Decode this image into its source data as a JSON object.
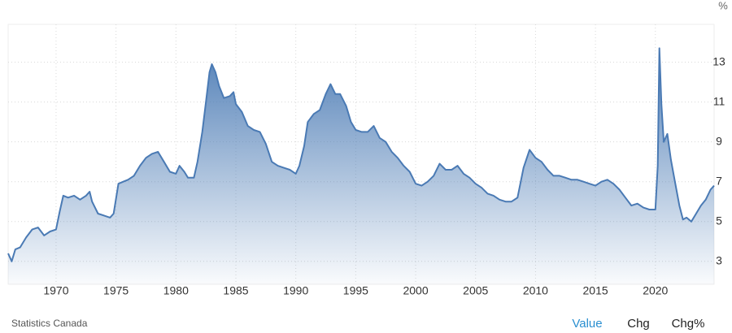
{
  "chart_data": {
    "type": "area",
    "y_unit": "%",
    "color": "#4a7ab4",
    "xlim": [
      1966,
      2024.9
    ],
    "xticks": [
      1970,
      1975,
      1980,
      1985,
      1990,
      1995,
      2000,
      2005,
      2010,
      2015,
      2020
    ],
    "ylim": [
      1.85,
      14.9
    ],
    "yticks": [
      3,
      5,
      7,
      9,
      11,
      13
    ],
    "grid": true,
    "x": [
      1966.0,
      1966.3,
      1966.6,
      1967,
      1967.5,
      1968,
      1968.5,
      1969,
      1969.5,
      1970,
      1970.3,
      1970.6,
      1971,
      1971.5,
      1972,
      1972.5,
      1972.8,
      1973,
      1973.5,
      1974,
      1974.5,
      1974.8,
      1975.2,
      1975.6,
      1976,
      1976.5,
      1977,
      1977.5,
      1978,
      1978.5,
      1979,
      1979.5,
      1980,
      1980.3,
      1980.7,
      1981,
      1981.5,
      1981.8,
      1982.2,
      1982.5,
      1982.8,
      1983,
      1983.3,
      1983.6,
      1984,
      1984.5,
      1984.8,
      1985,
      1985.5,
      1986,
      1986.5,
      1987,
      1987.5,
      1988,
      1988.5,
      1989,
      1989.5,
      1990,
      1990.3,
      1990.7,
      1991,
      1991.5,
      1992,
      1992.5,
      1992.9,
      1993.3,
      1993.7,
      1994.2,
      1994.6,
      1995,
      1995.5,
      1996,
      1996.5,
      1997,
      1997.5,
      1998,
      1998.5,
      1999,
      1999.5,
      2000,
      2000.5,
      2001,
      2001.5,
      2002,
      2002.5,
      2003,
      2003.5,
      2004,
      2004.5,
      2005,
      2005.5,
      2006,
      2006.5,
      2007,
      2007.5,
      2008,
      2008.5,
      2009,
      2009.5,
      2010,
      2010.5,
      2011,
      2011.5,
      2012,
      2012.5,
      2013,
      2013.5,
      2014,
      2014.5,
      2015,
      2015.5,
      2016,
      2016.5,
      2017,
      2017.5,
      2018,
      2018.5,
      2019,
      2019.5,
      2020,
      2020.2,
      2020.33,
      2020.5,
      2020.7,
      2021,
      2021.3,
      2021.6,
      2022,
      2022.3,
      2022.6,
      2023,
      2023.4,
      2023.8,
      2024.2,
      2024.6,
      2024.9
    ],
    "values": [
      3.4,
      3.0,
      3.6,
      3.7,
      4.2,
      4.6,
      4.7,
      4.3,
      4.5,
      4.6,
      5.5,
      6.3,
      6.2,
      6.3,
      6.1,
      6.3,
      6.5,
      6.0,
      5.4,
      5.3,
      5.2,
      5.4,
      6.9,
      7.0,
      7.1,
      7.3,
      7.8,
      8.2,
      8.4,
      8.5,
      8.0,
      7.5,
      7.4,
      7.8,
      7.5,
      7.2,
      7.2,
      8.0,
      9.5,
      11.0,
      12.5,
      12.9,
      12.5,
      11.8,
      11.2,
      11.3,
      11.5,
      10.9,
      10.5,
      9.8,
      9.6,
      9.5,
      8.9,
      8.0,
      7.8,
      7.7,
      7.6,
      7.4,
      7.8,
      8.8,
      10.0,
      10.4,
      10.6,
      11.4,
      11.9,
      11.4,
      11.4,
      10.8,
      10.0,
      9.6,
      9.5,
      9.5,
      9.8,
      9.2,
      9.0,
      8.5,
      8.2,
      7.8,
      7.5,
      6.9,
      6.8,
      7.0,
      7.3,
      7.9,
      7.6,
      7.6,
      7.8,
      7.4,
      7.2,
      6.9,
      6.7,
      6.4,
      6.3,
      6.1,
      6.0,
      6.0,
      6.2,
      7.7,
      8.6,
      8.2,
      8.0,
      7.6,
      7.3,
      7.3,
      7.2,
      7.1,
      7.1,
      7.0,
      6.9,
      6.8,
      7.0,
      7.1,
      6.9,
      6.6,
      6.2,
      5.8,
      5.9,
      5.7,
      5.6,
      5.6,
      7.8,
      13.7,
      10.9,
      9.0,
      9.4,
      8.1,
      7.1,
      5.8,
      5.1,
      5.2,
      5.0,
      5.4,
      5.8,
      6.1,
      6.6,
      6.8
    ]
  },
  "footer": {
    "source": "Statistics Canada",
    "buttons": [
      "Value",
      "Chg",
      "Chg%"
    ],
    "active_button": 0,
    "active_color": "#2a8fd0"
  }
}
